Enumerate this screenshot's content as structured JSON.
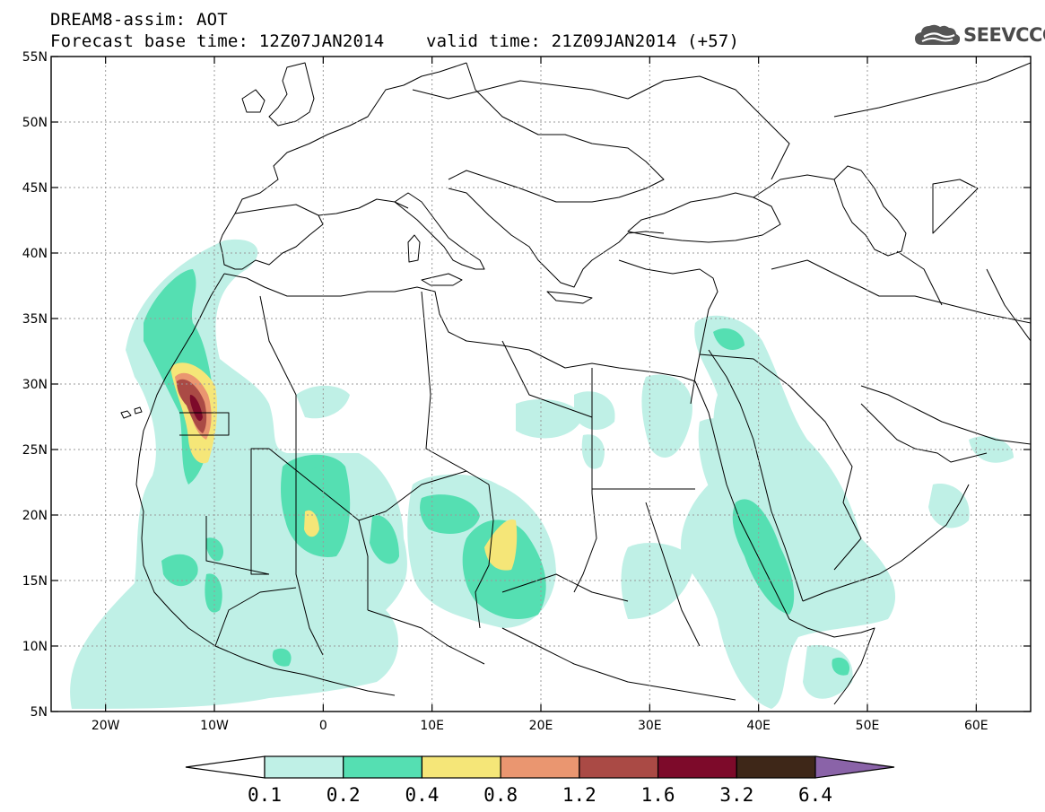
{
  "header": {
    "title_line1": "DREAM8-assim: AOT",
    "title_line2": "Forecast base time: 12Z07JAN2014    valid time: 21Z09JAN2014 (+57)",
    "logo_text": "SEEVCCC"
  },
  "map": {
    "lon_range": [
      -25,
      65
    ],
    "lat_range": [
      5,
      55
    ],
    "x_ticks": [
      {
        "lon": -20,
        "label": "20W"
      },
      {
        "lon": -10,
        "label": "10W"
      },
      {
        "lon": 0,
        "label": "0"
      },
      {
        "lon": 10,
        "label": "10E"
      },
      {
        "lon": 20,
        "label": "20E"
      },
      {
        "lon": 30,
        "label": "30E"
      },
      {
        "lon": 40,
        "label": "40E"
      },
      {
        "lon": 50,
        "label": "50E"
      },
      {
        "lon": 60,
        "label": "60E"
      }
    ],
    "y_ticks": [
      {
        "lat": 55,
        "label": "55N"
      },
      {
        "lat": 50,
        "label": "50N"
      },
      {
        "lat": 45,
        "label": "45N"
      },
      {
        "lat": 40,
        "label": "40N"
      },
      {
        "lat": 35,
        "label": "35N"
      },
      {
        "lat": 30,
        "label": "30N"
      },
      {
        "lat": 25,
        "label": "25N"
      },
      {
        "lat": 20,
        "label": "20N"
      },
      {
        "lat": 15,
        "label": "15N"
      },
      {
        "lat": 10,
        "label": "10N"
      },
      {
        "lat": 5,
        "label": "5N"
      }
    ],
    "grid": true
  },
  "colorbar": {
    "colors": [
      "#ffffff",
      "#bff0e6",
      "#55dfb2",
      "#f5e678",
      "#ea9670",
      "#aa4a45",
      "#7d0a2a",
      "#3e2718",
      "#8a63a8"
    ],
    "labels": [
      "0.1",
      "0.2",
      "0.4",
      "0.8",
      "1.2",
      "1.6",
      "3.2",
      "6.4"
    ]
  }
}
